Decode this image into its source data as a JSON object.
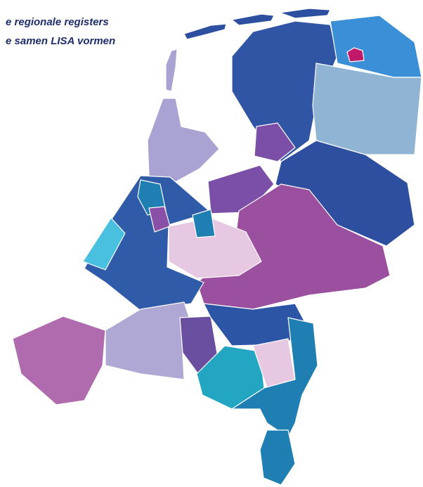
{
  "header": {
    "lines": [
      "e regionale registers",
      "e samen LISA vormen"
    ]
  }
}
